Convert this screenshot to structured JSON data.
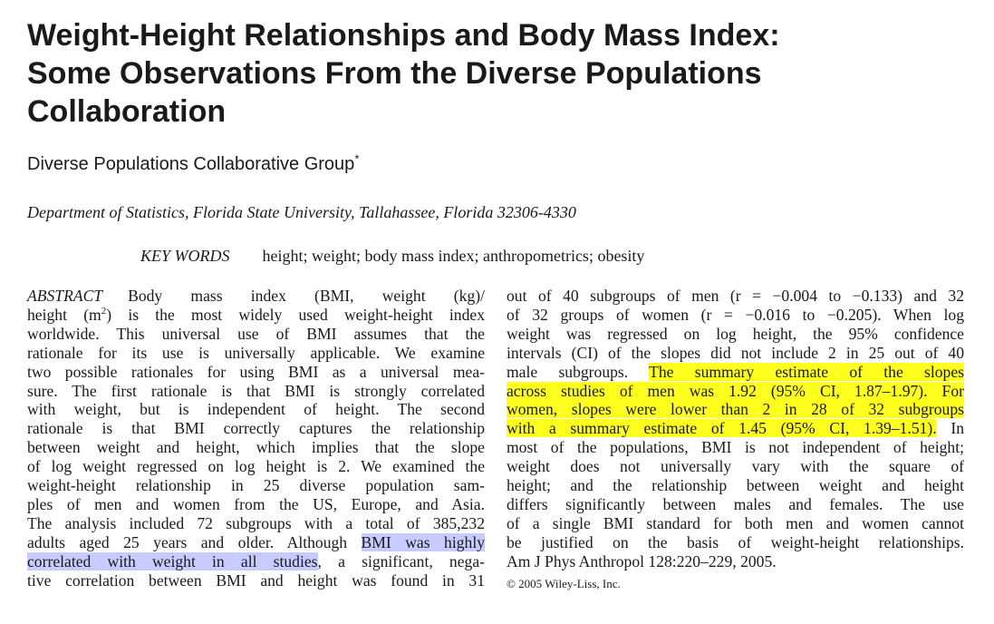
{
  "title": {
    "lines": [
      "Weight-Height Relationships and Body Mass Index:",
      "Some Observations From the Diverse Populations",
      "Collaboration"
    ]
  },
  "authors": {
    "name": "Diverse Populations Collaborative Group",
    "footnote_mark": "*"
  },
  "affiliation": "Department of Statistics, Florida State University, Tallahassee, Florida 32306-4330",
  "keywords": {
    "label": "KEY WORDS",
    "text": "height; weight; body mass index; anthropometrics; obesity"
  },
  "abstract": {
    "label": "ABSTRACT",
    "left_column": [
      "Body mass index (BMI, weight (kg)/",
      "height (m",
      "2",
      ") is the most widely used weight-height index",
      "worldwide. This universal use of BMI assumes that the",
      "rationale for its use is universally applicable. We examine",
      "two possible rationales for using BMI as a universal mea-",
      "sure. The first rationale is that BMI is strongly correlated",
      "with weight, but is independent of height. The second",
      "rationale is that BMI correctly captures the relationship",
      "between weight and height, which implies that the slope",
      "of log weight regressed on log height is 2. We examined the",
      "weight-height relationship in 25 diverse population sam-",
      "ples of men and women from the US, Europe, and Asia.",
      "The analysis included 72 subgroups with a total of 385,232",
      "adults aged 25 years and older. Although ",
      "BMI was highly",
      "correlated with weight in all studies",
      ", a significant, nega-",
      "tive correlation between BMI and height was found in 31"
    ],
    "right_column": [
      "out of 40 subgroups of men (r = −0.004 to −0.133) and 32",
      "of 32 groups of women (r = −0.016 to −0.205). When log",
      "weight was regressed on log height, the 95% confidence",
      "intervals (CI) of the slopes did not include 2 in 25 out of 40",
      "male subgroups. ",
      "The summary estimate of the slopes",
      "across studies of men was 1.92 (95% CI, 1.87–1.97). For",
      "women, slopes were lower than 2 in 28 of 32 subgroups",
      "with a summary estimate of 1.45 (95% CI, 1.39–1.51).",
      " In",
      "most of the populations, BMI is not independent of height;",
      "weight does not universally vary with the square of",
      "height; and the relationship between weight and height",
      "differs significantly between males and females. The use",
      "of a single BMI standard for both men and women cannot",
      "be justified on the basis of weight-height relationships.",
      "Am J Phys Anthropol 128:220–229, 2005."
    ]
  },
  "copyright": "© 2005 Wiley-Liss, Inc.",
  "colors": {
    "highlight_blue": "#c8cbff",
    "highlight_yellow": "#ffff1f"
  }
}
